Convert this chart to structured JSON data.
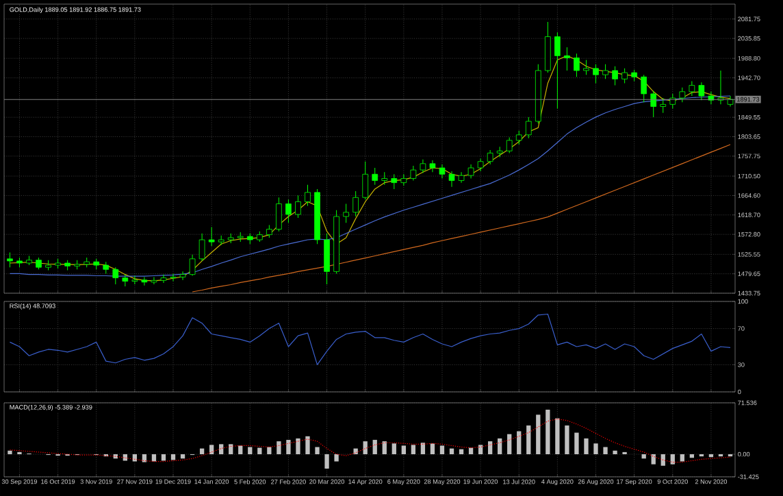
{
  "chart_data": [
    {
      "type": "candlestick",
      "title": "GOLD,Daily 1889.05 1891.92 1886.75 1891.73",
      "color": "#00ff00",
      "categories": [
        null,
        null,
        null,
        null,
        null,
        null,
        null,
        null,
        null,
        null,
        null,
        null,
        null,
        null,
        null,
        null,
        null,
        null,
        null,
        null,
        null,
        null,
        null,
        null,
        null,
        null,
        null,
        null,
        null,
        null,
        null,
        null,
        null,
        null,
        null,
        null,
        null,
        null,
        null,
        null,
        null,
        null,
        null,
        null,
        null,
        null,
        null,
        null,
        null,
        null,
        null,
        null,
        null,
        null,
        null,
        null,
        null,
        null,
        null,
        null,
        null,
        null,
        null,
        null,
        null,
        null,
        null,
        null,
        null,
        null,
        null,
        null,
        null,
        null,
        null,
        null
      ],
      "ohlc": [
        [
          1515,
          1530,
          1495,
          1510
        ],
        [
          1510,
          1518,
          1495,
          1505
        ],
        [
          1505,
          1522,
          1500,
          1512
        ],
        [
          1512,
          1518,
          1490,
          1495
        ],
        [
          1495,
          1512,
          1488,
          1500
        ],
        [
          1500,
          1515,
          1492,
          1505
        ],
        [
          1505,
          1512,
          1488,
          1498
        ],
        [
          1498,
          1512,
          1490,
          1502
        ],
        [
          1502,
          1518,
          1495,
          1508
        ],
        [
          1508,
          1515,
          1490,
          1500
        ],
        [
          1500,
          1508,
          1480,
          1490
        ],
        [
          1490,
          1495,
          1455,
          1470
        ],
        [
          1470,
          1478,
          1450,
          1462
        ],
        [
          1462,
          1475,
          1455,
          1465
        ],
        [
          1465,
          1472,
          1452,
          1460
        ],
        [
          1460,
          1472,
          1455,
          1464
        ],
        [
          1464,
          1478,
          1458,
          1470
        ],
        [
          1470,
          1480,
          1462,
          1472
        ],
        [
          1472,
          1485,
          1465,
          1478
        ],
        [
          1478,
          1525,
          1475,
          1515
        ],
        [
          1515,
          1575,
          1510,
          1560
        ],
        [
          1560,
          1590,
          1545,
          1555
        ],
        [
          1555,
          1570,
          1548,
          1560
        ],
        [
          1560,
          1575,
          1552,
          1565
        ],
        [
          1565,
          1578,
          1555,
          1568
        ],
        [
          1568,
          1575,
          1550,
          1560
        ],
        [
          1560,
          1580,
          1555,
          1572
        ],
        [
          1572,
          1595,
          1565,
          1585
        ],
        [
          1585,
          1660,
          1580,
          1645
        ],
        [
          1645,
          1655,
          1600,
          1620
        ],
        [
          1620,
          1665,
          1612,
          1650
        ],
        [
          1650,
          1690,
          1640,
          1672
        ],
        [
          1672,
          1680,
          1550,
          1560
        ],
        [
          1560,
          1575,
          1455,
          1485
        ],
        [
          1485,
          1630,
          1480,
          1615
        ],
        [
          1615,
          1645,
          1600,
          1625
        ],
        [
          1625,
          1675,
          1615,
          1660
        ],
        [
          1660,
          1745,
          1655,
          1715
        ],
        [
          1715,
          1730,
          1690,
          1700
        ],
        [
          1700,
          1720,
          1690,
          1705
        ],
        [
          1705,
          1715,
          1680,
          1695
        ],
        [
          1695,
          1715,
          1688,
          1705
        ],
        [
          1705,
          1735,
          1700,
          1725
        ],
        [
          1725,
          1750,
          1718,
          1740
        ],
        [
          1740,
          1748,
          1720,
          1730
        ],
        [
          1730,
          1738,
          1705,
          1715
        ],
        [
          1715,
          1722,
          1685,
          1700
        ],
        [
          1700,
          1720,
          1695,
          1712
        ],
        [
          1712,
          1738,
          1705,
          1730
        ],
        [
          1730,
          1752,
          1722,
          1745
        ],
        [
          1745,
          1772,
          1738,
          1765
        ],
        [
          1765,
          1780,
          1755,
          1770
        ],
        [
          1770,
          1802,
          1765,
          1795
        ],
        [
          1795,
          1818,
          1785,
          1808
        ],
        [
          1808,
          1850,
          1800,
          1840
        ],
        [
          1840,
          1975,
          1835,
          1960
        ],
        [
          1960,
          2075,
          1955,
          2040
        ],
        [
          2040,
          2050,
          1870,
          1995
        ],
        [
          1995,
          2015,
          1960,
          1990
        ],
        [
          1990,
          2000,
          1945,
          1960
        ],
        [
          1960,
          1985,
          1950,
          1965
        ],
        [
          1965,
          1975,
          1930,
          1950
        ],
        [
          1950,
          1975,
          1940,
          1960
        ],
        [
          1960,
          1970,
          1925,
          1940
        ],
        [
          1940,
          1965,
          1930,
          1955
        ],
        [
          1955,
          1962,
          1935,
          1945
        ],
        [
          1945,
          1950,
          1885,
          1905
        ],
        [
          1905,
          1912,
          1850,
          1875
        ],
        [
          1875,
          1895,
          1860,
          1880
        ],
        [
          1880,
          1905,
          1870,
          1895
        ],
        [
          1895,
          1920,
          1885,
          1910
        ],
        [
          1910,
          1935,
          1900,
          1925
        ],
        [
          1925,
          1932,
          1890,
          1900
        ],
        [
          1900,
          1910,
          1880,
          1890
        ],
        [
          1890,
          1960,
          1880,
          1895
        ],
        [
          1880,
          1900,
          1875,
          1891.73
        ]
      ],
      "series": [
        {
          "type": "line",
          "color": "#c8b400",
          "values": [
            1505,
            1506,
            1507,
            1505,
            1503,
            1502,
            1502,
            1501,
            1502,
            1503,
            1500,
            1490,
            1478,
            1468,
            1464,
            1463,
            1465,
            1469,
            1473,
            1488,
            1510,
            1530,
            1550,
            1558,
            1562,
            1563,
            1565,
            1572,
            1595,
            1615,
            1630,
            1650,
            1640,
            1580,
            1550,
            1565,
            1610,
            1650,
            1680,
            1695,
            1700,
            1702,
            1708,
            1720,
            1730,
            1728,
            1715,
            1710,
            1715,
            1728,
            1745,
            1760,
            1775,
            1792,
            1815,
            1825,
            1930,
            1985,
            1995,
            1985,
            1970,
            1962,
            1958,
            1955,
            1950,
            1948,
            1935,
            1910,
            1892,
            1888,
            1895,
            1908,
            1910,
            1903,
            1897,
            1894
          ]
        },
        {
          "type": "line",
          "color": "#4a6cd4",
          "values": [
            1480,
            1480,
            1478,
            1478,
            1477,
            1477,
            1476,
            1476,
            1476,
            1475,
            1475,
            1474,
            1474,
            1474,
            1474,
            1475,
            1476,
            1477,
            1479,
            1482,
            1490,
            1497,
            1505,
            1512,
            1520,
            1526,
            1532,
            1538,
            1545,
            1550,
            1555,
            1560,
            1562,
            1560,
            1565,
            1575,
            1585,
            1595,
            1605,
            1614,
            1622,
            1630,
            1637,
            1644,
            1651,
            1658,
            1665,
            1672,
            1679,
            1686,
            1693,
            1703,
            1713,
            1725,
            1738,
            1752,
            1770,
            1790,
            1810,
            1825,
            1838,
            1850,
            1860,
            1868,
            1875,
            1882,
            1886,
            1888,
            1890,
            1892,
            1894,
            1896,
            1897,
            1898,
            1899,
            1900
          ]
        },
        {
          "type": "line",
          "color": "#d2691e",
          "values": [
            null,
            null,
            null,
            null,
            null,
            null,
            null,
            null,
            null,
            null,
            null,
            null,
            null,
            null,
            null,
            null,
            null,
            null,
            null,
            1437,
            1441,
            1446,
            1450,
            1454,
            1459,
            1463,
            1467,
            1472,
            1476,
            1480,
            1485,
            1489,
            1493,
            1497,
            1502,
            1507,
            1512,
            1517,
            1522,
            1527,
            1532,
            1537,
            1542,
            1547,
            1553,
            1558,
            1563,
            1568,
            1573,
            1578,
            1583,
            1588,
            1593,
            1598,
            1603,
            1608,
            1614,
            1623,
            1632,
            1641,
            1650,
            1659,
            1668,
            1677,
            1686,
            1695,
            1704,
            1713,
            1722,
            1731,
            1740,
            1749,
            1758,
            1767,
            1776,
            1785
          ]
        }
      ],
      "ylim": [
        1433.75,
        2117
      ],
      "yticks": [
        1433.75,
        1479.65,
        1525.55,
        {
          "value": 1572.8,
          "label": "1572.80"
        },
        {
          "value": 1618.7,
          "label": "1618.70"
        },
        {
          "value": 1664.6,
          "label": "1664.60"
        },
        {
          "value": 1710.5,
          "label": "1710.50"
        },
        1757.75,
        1803.65,
        1849.55,
        {
          "value": 1942.7,
          "label": "1942.70"
        },
        {
          "value": 1988.8,
          "label": "1988.80"
        },
        2035.85,
        2081.75
      ],
      "ref_lines": [
        {
          "axis": "y",
          "value": 1891.73,
          "label": "1891.73",
          "color": "#808080"
        }
      ],
      "grid": true,
      "tick_labels": "y"
    },
    {
      "type": "line",
      "title": "RSI(14) 48.7093",
      "categories": [
        null,
        null,
        null,
        null,
        null,
        null,
        null,
        null,
        null,
        null,
        null,
        null,
        null,
        null,
        null,
        null,
        null,
        null,
        null,
        null,
        null,
        null,
        null,
        null,
        null,
        null,
        null,
        null,
        null,
        null,
        null,
        null,
        null,
        null,
        null,
        null,
        null,
        null,
        null,
        null,
        null,
        null,
        null,
        null,
        null,
        null,
        null,
        null,
        null,
        null,
        null,
        null,
        null,
        null,
        null,
        null,
        null,
        null,
        null,
        null,
        null,
        null,
        null,
        null,
        null,
        null,
        null,
        null,
        null,
        null,
        null,
        null,
        null,
        null,
        null,
        null
      ],
      "series": [
        {
          "color": "#3a5fcd",
          "values": [
            55,
            50,
            40,
            44,
            47,
            46,
            44,
            47,
            50,
            55,
            34,
            32,
            36,
            38,
            35,
            37,
            42,
            50,
            62,
            82,
            76,
            64,
            62,
            60,
            58,
            55,
            62,
            70,
            76,
            50,
            62,
            65,
            30,
            45,
            58,
            64,
            66,
            67,
            60,
            60,
            57,
            55,
            60,
            64,
            58,
            53,
            50,
            55,
            59,
            62,
            64,
            65,
            68,
            70,
            75,
            85,
            86,
            52,
            55,
            50,
            52,
            48,
            53,
            47,
            53,
            50,
            40,
            36,
            42,
            48,
            52,
            56,
            64,
            45,
            50,
            49
          ]
        }
      ],
      "ylim": [
        0,
        100
      ],
      "yticks": [
        0,
        30,
        70,
        100
      ],
      "grid": true,
      "tick_labels": "y"
    },
    {
      "type": "bar",
      "title": "MACD(12,26,9) -5.389 -2.939",
      "categories": [
        null,
        "30 Sep 2019",
        null,
        null,
        null,
        "16 Oct 2019",
        null,
        null,
        null,
        "3 Nov 2019",
        null,
        null,
        null,
        "27 Nov 2019",
        null,
        null,
        null,
        "19 Dec 2019",
        null,
        null,
        null,
        "14 Jan 2020",
        null,
        null,
        null,
        "5 Feb 2020",
        null,
        null,
        null,
        "27 Feb 2020",
        null,
        null,
        null,
        "20 Mar 2020",
        null,
        null,
        null,
        "14 Apr 2020",
        null,
        null,
        null,
        "6 May 2020",
        null,
        null,
        null,
        "28 May 2020",
        null,
        null,
        null,
        "19 Jun 2020",
        null,
        null,
        null,
        "13 Jul 2020",
        null,
        null,
        null,
        "4 Aug 2020",
        null,
        null,
        null,
        "26 Aug 2020",
        null,
        null,
        null,
        "17 Sep 2020",
        null,
        null,
        null,
        "9 Oct 2020",
        null,
        null,
        null,
        "2 Nov 2020",
        null,
        null
      ],
      "series": [
        {
          "color": "#c0c0c0",
          "values": [
            5,
            3,
            1,
            0,
            -1,
            -2,
            -2,
            -1,
            0,
            -1,
            -3,
            -6,
            -9,
            -10,
            -11,
            -10,
            -9,
            -8,
            -6,
            -1,
            8,
            13,
            14,
            14,
            12,
            10,
            9,
            10,
            18,
            20,
            22,
            25,
            10,
            -20,
            -10,
            0,
            8,
            18,
            20,
            18,
            15,
            12,
            13,
            16,
            15,
            12,
            8,
            7,
            9,
            13,
            18,
            22,
            28,
            32,
            40,
            55,
            62,
            50,
            40,
            30,
            22,
            15,
            10,
            5,
            3,
            0,
            -6,
            -14,
            -16,
            -14,
            -10,
            -5,
            -3,
            -4,
            -3,
            -3
          ]
        },
        {
          "type": "line",
          "line_style": "dotted",
          "color": "#ff0000",
          "values": [
            6,
            5,
            4,
            3,
            2,
            1,
            0,
            -1,
            -1,
            -1,
            -2,
            -3,
            -5,
            -7,
            -9,
            -10,
            -10,
            -9,
            -8,
            -6,
            -2,
            3,
            8,
            11,
            12,
            12,
            11,
            10,
            12,
            15,
            18,
            21,
            18,
            8,
            0,
            -2,
            2,
            8,
            13,
            16,
            16,
            15,
            14,
            14,
            15,
            14,
            12,
            10,
            9,
            10,
            13,
            16,
            20,
            25,
            30,
            38,
            46,
            49,
            47,
            42,
            36,
            29,
            22,
            16,
            11,
            7,
            3,
            -3,
            -8,
            -11,
            -11,
            -9,
            -7,
            -6,
            -5,
            -4
          ]
        }
      ],
      "ylim": [
        -31.425,
        71.536
      ],
      "yticks": [
        -31.425,
        {
          "value": 0,
          "label": "0.00"
        },
        71.536
      ],
      "grid": true
    }
  ]
}
